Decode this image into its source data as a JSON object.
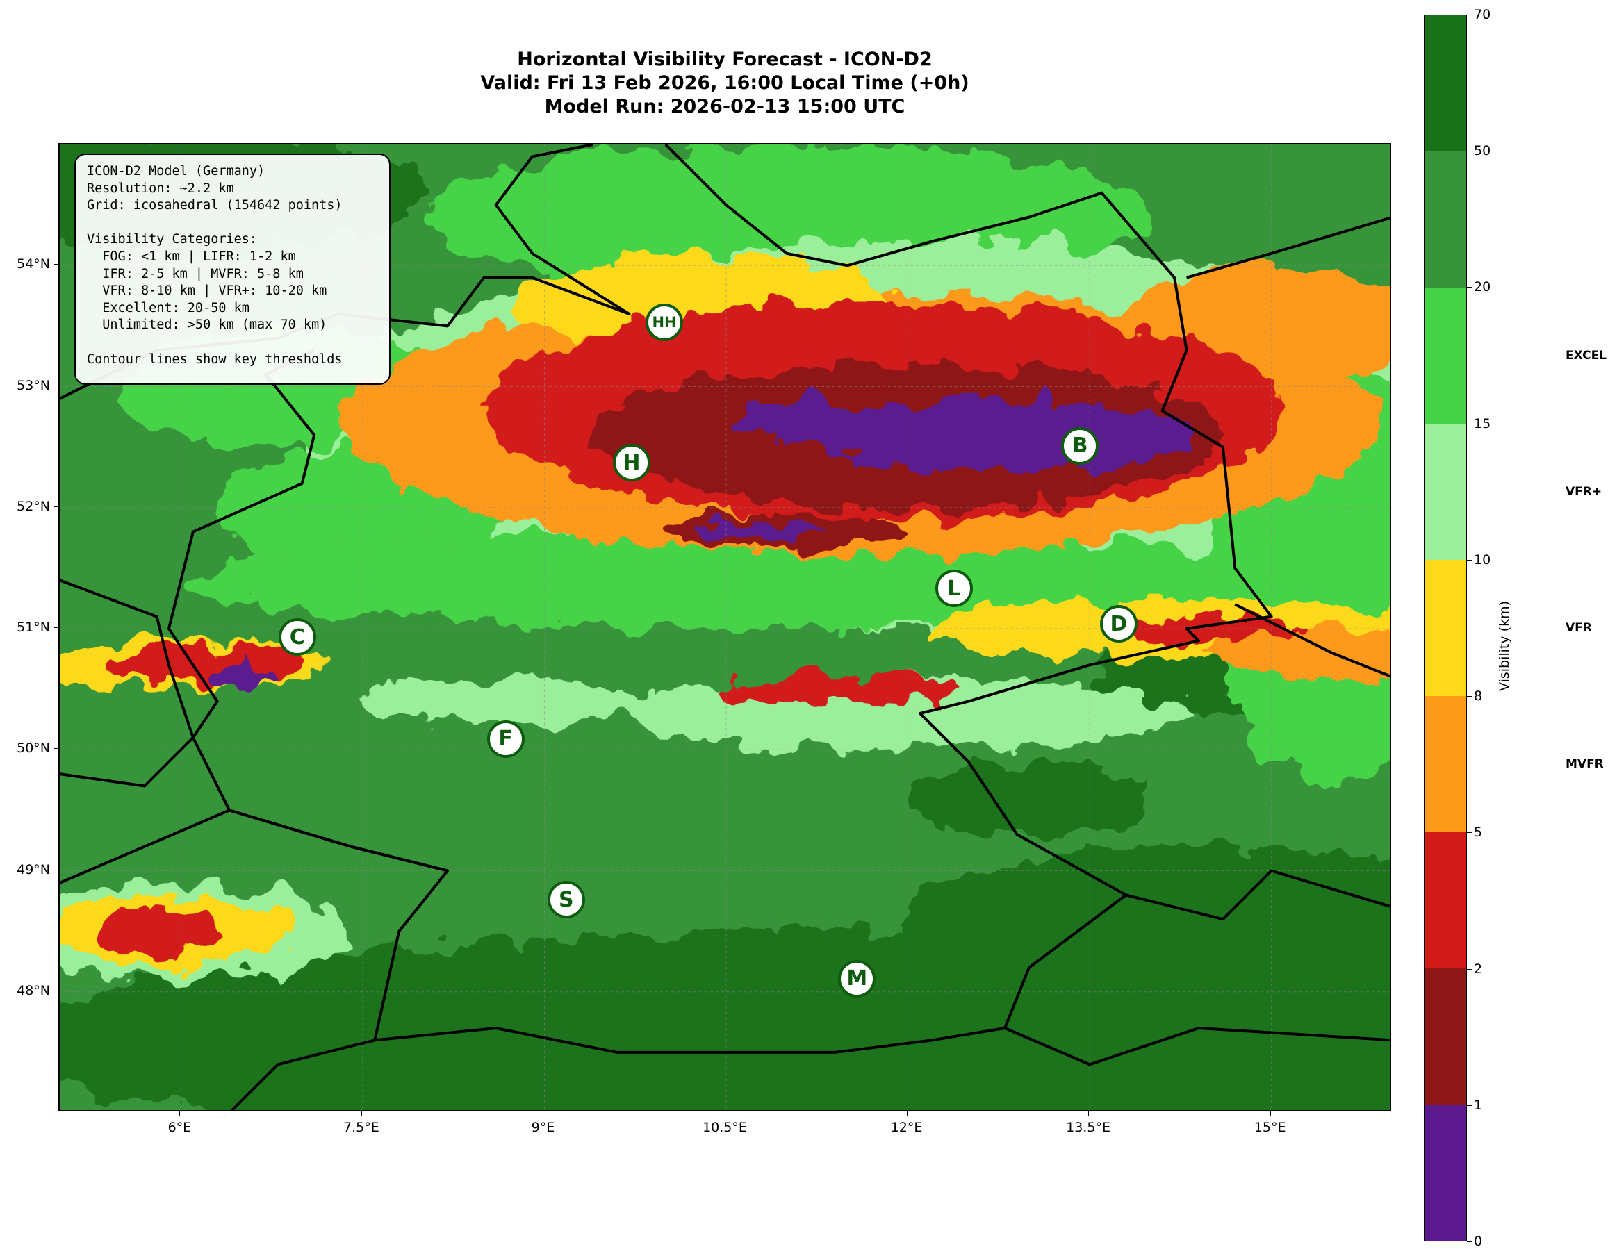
{
  "title": {
    "line1": "Horizontal Visibility Forecast - ICON-D2",
    "line2": "Valid: Fri 13 Feb 2026, 16:00 Local Time (+0h)",
    "line3": "Model Run: 2026-02-13 15:00 UTC"
  },
  "map": {
    "extent": {
      "lon": [
        5,
        16
      ],
      "lat": [
        47,
        55
      ]
    },
    "x_ticks": [
      {
        "value": 6,
        "label": "6°E"
      },
      {
        "value": 7.5,
        "label": "7.5°E"
      },
      {
        "value": 9,
        "label": "9°E"
      },
      {
        "value": 10.5,
        "label": "10.5°E"
      },
      {
        "value": 12,
        "label": "12°E"
      },
      {
        "value": 13.5,
        "label": "13.5°E"
      },
      {
        "value": 15,
        "label": "15°E"
      }
    ],
    "y_ticks": [
      {
        "value": 48,
        "label": "48°N"
      },
      {
        "value": 49,
        "label": "49°N"
      },
      {
        "value": 50,
        "label": "50°N"
      },
      {
        "value": 51,
        "label": "51°N"
      },
      {
        "value": 52,
        "label": "52°N"
      },
      {
        "value": 53,
        "label": "53°N"
      },
      {
        "value": 54,
        "label": "54°N"
      }
    ],
    "grid": true,
    "cities": [
      {
        "label": "HH",
        "lon": 9.99,
        "lat": 53.53
      },
      {
        "label": "H",
        "lon": 9.72,
        "lat": 52.37
      },
      {
        "label": "B",
        "lon": 13.42,
        "lat": 52.51
      },
      {
        "label": "L",
        "lon": 12.38,
        "lat": 51.33
      },
      {
        "label": "D",
        "lon": 13.74,
        "lat": 51.04
      },
      {
        "label": "C",
        "lon": 6.96,
        "lat": 50.93
      },
      {
        "label": "F",
        "lon": 8.68,
        "lat": 50.09
      },
      {
        "label": "S",
        "lon": 9.18,
        "lat": 48.76
      },
      {
        "label": "M",
        "lon": 11.58,
        "lat": 48.11
      }
    ]
  },
  "info_box": {
    "lines": [
      "ICON-D2 Model (Germany)",
      "Resolution: ~2.2 km",
      "Grid: icosahedral (154642 points)",
      "",
      "Visibility Categories:",
      "  FOG: <1 km | LIFR: 1-2 km",
      "  IFR: 2-5 km | MVFR: 5-8 km",
      "  VFR: 8-10 km | VFR+: 10-20 km",
      "  Excellent: 20-50 km",
      "  Unlimited: >50 km (max 70 km)",
      "",
      "Contour lines show key thresholds"
    ]
  },
  "colorbar": {
    "label": "Visibility (km)",
    "boundaries": [
      "0",
      "1",
      "2",
      "5",
      "8",
      "10",
      "15",
      "20",
      "50",
      "70"
    ],
    "colors": [
      "#5a1a8e",
      "#8e1818",
      "#d21a1a",
      "#fd9a1a",
      "#fdd91a",
      "#9bef9b",
      "#47d347",
      "#38943a",
      "#1a731a"
    ],
    "categories": [
      {
        "label": "EXCEL",
        "value": 17.5
      },
      {
        "label": "VFR+",
        "value": 12.5
      },
      {
        "label": "VFR",
        "value": 9
      },
      {
        "label": "MVFR",
        "value": 6.5
      }
    ]
  }
}
